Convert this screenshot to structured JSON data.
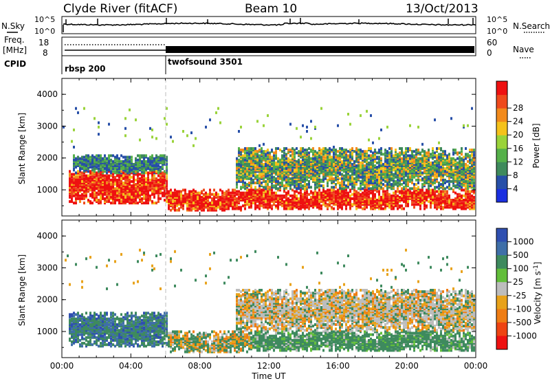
{
  "header": {
    "station": "Clyde River (fitACF)",
    "beam": "Beam 10",
    "date": "13/Oct/2013"
  },
  "summary": {
    "nsky_label": "N.Sky",
    "nsky_ticks": [
      "10^5",
      "10^0"
    ],
    "nsearch_label": "N.Search",
    "freq_label": "Freq.",
    "freq_unit": "[MHz]",
    "freq_ticks": [
      "18",
      "8"
    ],
    "nave_label": "Nave",
    "nave_ticks": [
      "60",
      "0"
    ],
    "cpid_label": "CPID",
    "cpid_segments": [
      {
        "name": "rbsp 200",
        "start_hour": 0
      },
      {
        "name": "twofsound 3501",
        "start_hour": 6
      }
    ]
  },
  "colors": {
    "power_scale": [
      "#1a2fe0",
      "#274fa8",
      "#3f8a5c",
      "#55b04a",
      "#9ad33a",
      "#f5c21b",
      "#f28a1b",
      "#ef4a1c",
      "#ee1111"
    ],
    "velocity_scale": [
      "#2f4fb0",
      "#3f6fa8",
      "#3e8a5e",
      "#62be3a",
      "#bdbdbd",
      "#e8a21a",
      "#ef7d14",
      "#ee4412",
      "#ee1111"
    ]
  },
  "chart_data": [
    {
      "type": "heatmap",
      "panel": "power",
      "xlabel": "",
      "ylabel": "Slant Range [km]",
      "xlim": [
        0,
        24
      ],
      "ylim": [
        180,
        4500
      ],
      "yticks": [
        "1000",
        "2000",
        "3000",
        "4000"
      ],
      "colorbar_label": "Power [dB]",
      "colorbar_ticks": [
        "4",
        "8",
        "12",
        "16",
        "20",
        "24",
        "28"
      ],
      "bands": [
        {
          "from": 0.3,
          "to": 6.0,
          "rmin": 550,
          "rmax": 1600,
          "level": "high"
        },
        {
          "from": 6.0,
          "to": 11.0,
          "rmin": 350,
          "rmax": 1000,
          "level": "high"
        },
        {
          "from": 11.0,
          "to": 24.0,
          "rmin": 400,
          "rmax": 1000,
          "level": "high"
        },
        {
          "from": 10.0,
          "to": 24.0,
          "rmin": 1000,
          "rmax": 2300,
          "level": "mid"
        },
        {
          "from": 0.5,
          "to": 6.0,
          "rmin": 1500,
          "rmax": 2100,
          "level": "low"
        }
      ]
    },
    {
      "type": "heatmap",
      "panel": "velocity",
      "xlabel": "Time UT",
      "ylabel": "Slant Range [km]",
      "xlim": [
        0,
        24
      ],
      "ylim": [
        180,
        4500
      ],
      "xticks": [
        "00:00",
        "04:00",
        "08:00",
        "12:00",
        "16:00",
        "20:00",
        "00:00"
      ],
      "yticks": [
        "1000",
        "2000",
        "3000",
        "4000"
      ],
      "colorbar_label": "Velocity [m s^-1]",
      "colorbar_ticks": [
        "1000",
        "500",
        "100",
        "25",
        "-25",
        "-100",
        "-500",
        "-1000"
      ],
      "bands": [
        {
          "from": 0.3,
          "to": 6.0,
          "rmin": 500,
          "rmax": 1600,
          "level": "green-blue"
        },
        {
          "from": 6.0,
          "to": 11.0,
          "rmin": 350,
          "rmax": 1000,
          "level": "green-orange"
        },
        {
          "from": 11.0,
          "to": 24.0,
          "rmin": 400,
          "rmax": 1000,
          "level": "green"
        },
        {
          "from": 10.0,
          "to": 24.0,
          "rmin": 1000,
          "rmax": 2300,
          "level": "gray-orange"
        }
      ]
    }
  ]
}
